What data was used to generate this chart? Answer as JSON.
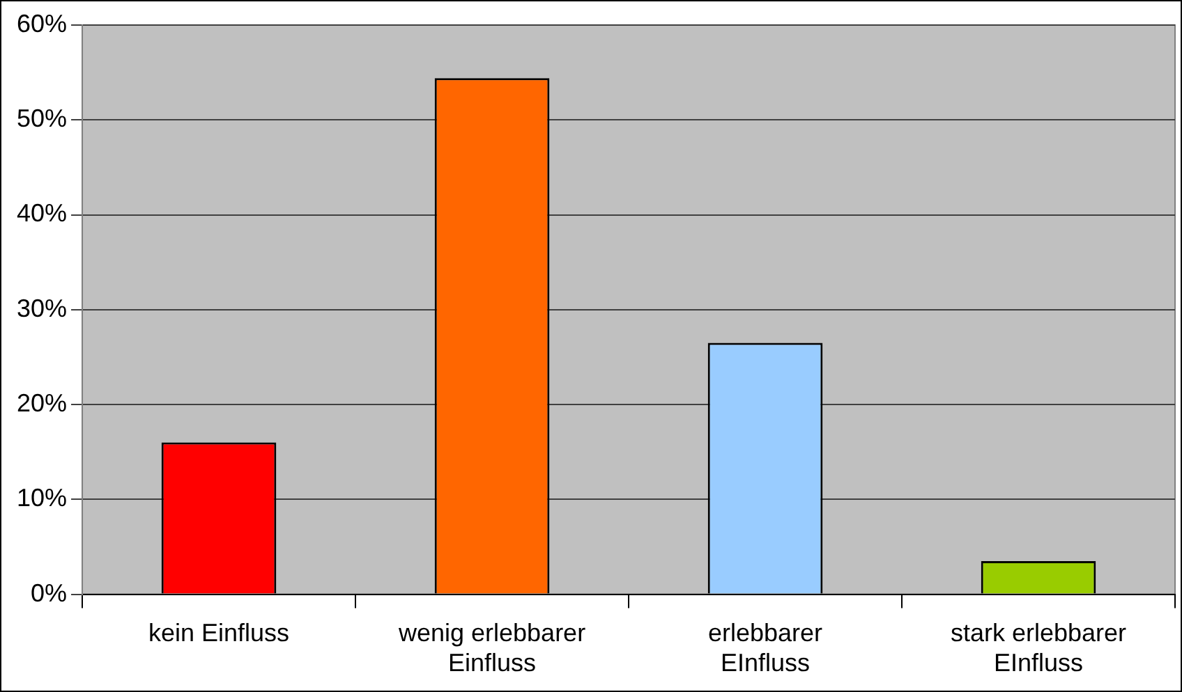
{
  "chart_data": {
    "type": "bar",
    "categories": [
      "kein Einfluss",
      "wenig erlebbarer\nEinfluss",
      "erlebbarer\nEInfluss",
      "stark erlebbarer\nEInfluss"
    ],
    "values": [
      16,
      54.4,
      26.5,
      3.5
    ],
    "colors": [
      "#ff0000",
      "#ff6600",
      "#99ccff",
      "#99cc00"
    ],
    "ylim": [
      0,
      60
    ],
    "yticks": [
      {
        "value": 0,
        "label": "0%"
      },
      {
        "value": 10,
        "label": "10%"
      },
      {
        "value": 20,
        "label": "20%"
      },
      {
        "value": 30,
        "label": "30%"
      },
      {
        "value": 40,
        "label": "40%"
      },
      {
        "value": 50,
        "label": "50%"
      },
      {
        "value": 60,
        "label": "60%"
      }
    ],
    "grid": "y",
    "legend": false
  }
}
